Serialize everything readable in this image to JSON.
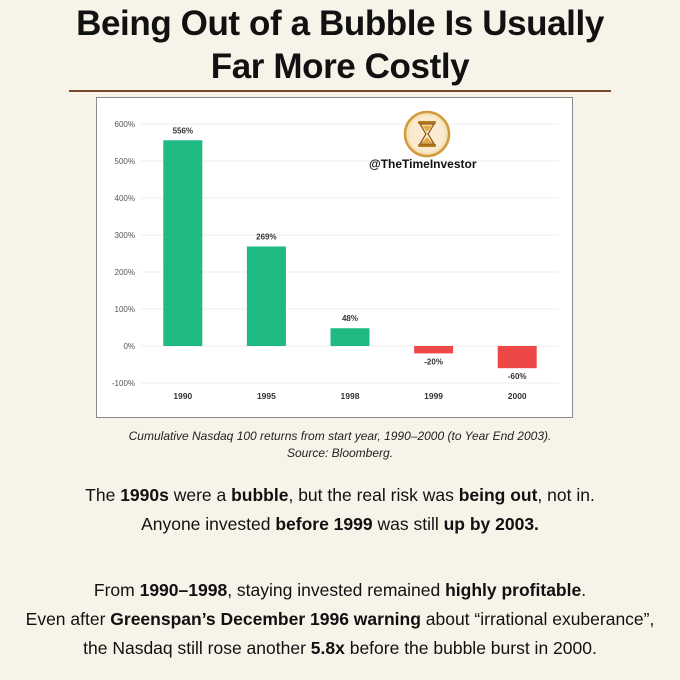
{
  "title": {
    "line1": "Being Out of a Bubble Is Usually",
    "line2": "Far More Costly"
  },
  "watermark": "@TheTimeInvestor",
  "colors": {
    "positive": "#1fba82",
    "negative": "#ee4747",
    "rule": "#7a4a2c",
    "background": "#f8f3e9"
  },
  "chart_data": {
    "type": "bar",
    "categories": [
      "1990",
      "1995",
      "1998",
      "1999",
      "2000"
    ],
    "values": [
      556,
      269,
      48,
      -20,
      -60
    ],
    "value_labels": [
      "556%",
      "269%",
      "48%",
      "-20%",
      "-60%"
    ],
    "yticks": [
      "-100%",
      "0%",
      "100%",
      "200%",
      "300%",
      "400%",
      "500%",
      "600%"
    ],
    "ylim": [
      -100,
      600
    ],
    "grid": true,
    "legend": "none"
  },
  "caption": {
    "line1": "Cumulative Nasdaq 100 returns from start year, 1990–2000 (to Year End 2003).",
    "line2": "Source: Bloomberg."
  },
  "para1": {
    "line1": [
      {
        "t": "The ",
        "b": false
      },
      {
        "t": "1990s",
        "b": true
      },
      {
        "t": " were a ",
        "b": false
      },
      {
        "t": "bubble",
        "b": true
      },
      {
        "t": ", but the real risk was ",
        "b": false
      },
      {
        "t": "being out",
        "b": true
      },
      {
        "t": ", not in.",
        "b": false
      }
    ],
    "line2": [
      {
        "t": "Anyone invested ",
        "b": false
      },
      {
        "t": "before 1999",
        "b": true
      },
      {
        "t": " was still ",
        "b": false
      },
      {
        "t": "up by 2003.",
        "b": true
      }
    ]
  },
  "para2": {
    "line1": [
      {
        "t": "From ",
        "b": false
      },
      {
        "t": "1990–1998",
        "b": true
      },
      {
        "t": ", staying invested remained ",
        "b": false
      },
      {
        "t": "highly profitable",
        "b": true
      },
      {
        "t": ".",
        "b": false
      }
    ],
    "line2": [
      {
        "t": "Even after ",
        "b": false
      },
      {
        "t": "Greenspan’s December 1996 warning",
        "b": true
      },
      {
        "t": " about “irrational exuberance”,",
        "b": false
      }
    ],
    "line3": [
      {
        "t": "the Nasdaq still rose another ",
        "b": false
      },
      {
        "t": "5.8x",
        "b": true
      },
      {
        "t": " before the bubble burst in 2000.",
        "b": false
      }
    ]
  }
}
